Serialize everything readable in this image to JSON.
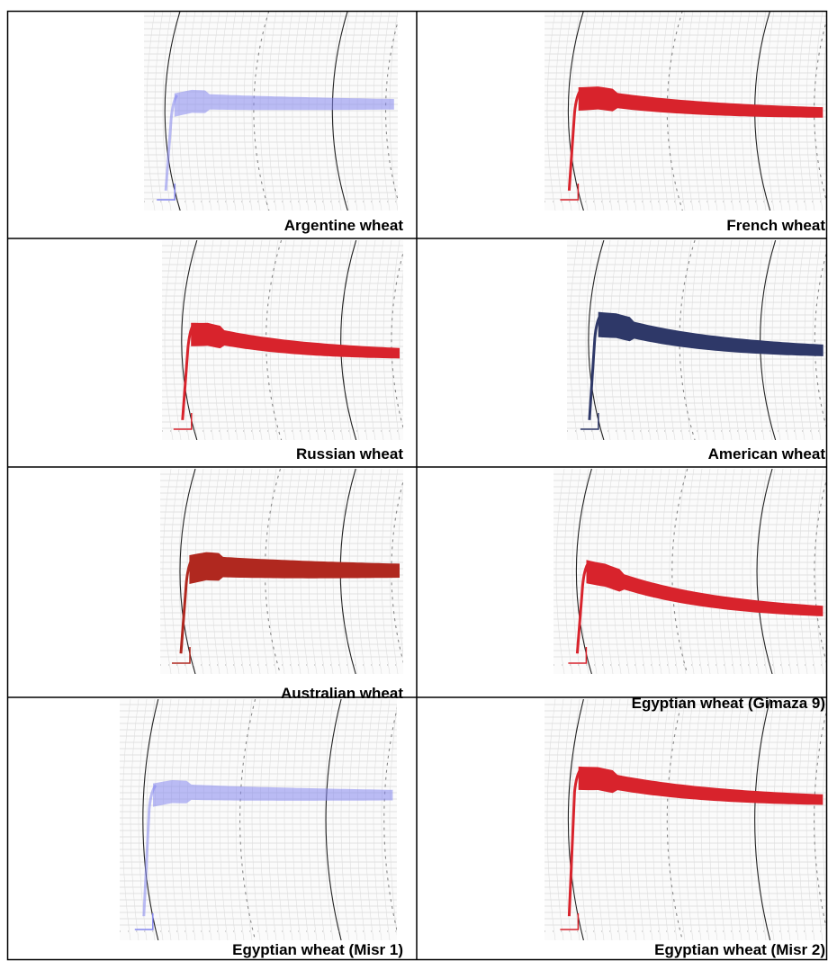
{
  "table": {
    "rows": [
      [
        "Argentine wheat",
        "French wheat"
      ],
      [
        "Russian wheat",
        "American wheat"
      ],
      [
        "Australian wheat",
        "Egyptian wheat (Gimaza 9)"
      ],
      [
        "Egyptian wheat (Misr 1)",
        "Egyptian wheat (Misr 2)"
      ]
    ]
  }
}
